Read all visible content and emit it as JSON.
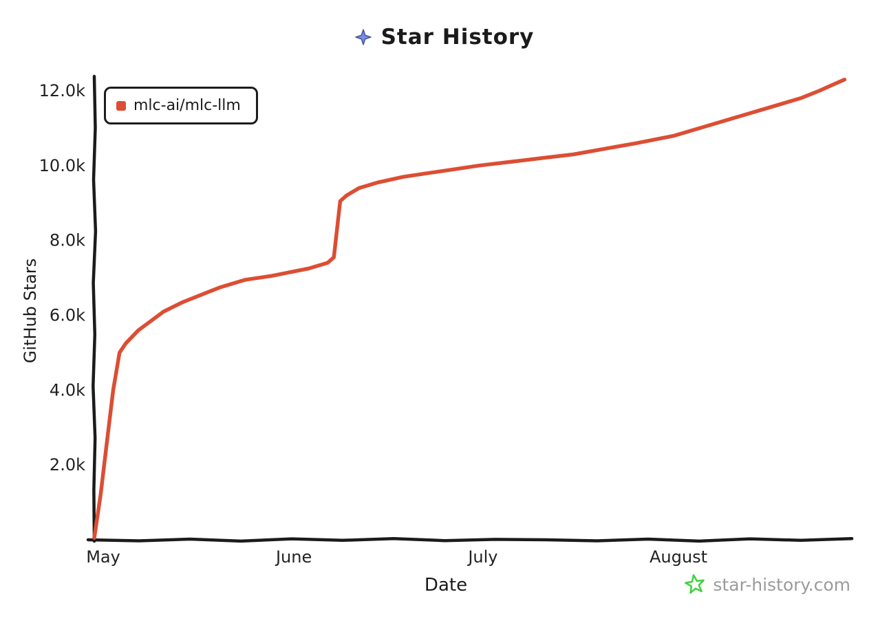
{
  "footer": {
    "text": "star-history.com",
    "star_color": "#3fd23f",
    "text_color": "#9b9b9b"
  },
  "title_icon_color": "#7b8ce0",
  "colors": {
    "series": "#DC4E34",
    "axis": "#1b1b1b",
    "tick_text": "#222222"
  },
  "chart_data": {
    "type": "line",
    "title": "Star History",
    "xlabel": "Date",
    "ylabel": "GitHub Stars",
    "ylim": [
      0,
      12600
    ],
    "grid": false,
    "legend_position": "top-left",
    "x_ticks": [
      "May",
      "June",
      "July",
      "August"
    ],
    "y_ticks": [
      "2.0k",
      "4.0k",
      "6.0k",
      "8.0k",
      "10.0k",
      "12.0k"
    ],
    "y_tick_values": [
      2000,
      4000,
      6000,
      8000,
      10000,
      12000
    ],
    "series": [
      {
        "name": "mlc-ai/mlc-llm",
        "color": "#DC4E34",
        "points": [
          {
            "date": "May 1",
            "stars": 50
          },
          {
            "date": "May 2",
            "stars": 1200
          },
          {
            "date": "May 3",
            "stars": 2600
          },
          {
            "date": "May 4",
            "stars": 4000
          },
          {
            "date": "May 5",
            "stars": 5000
          },
          {
            "date": "May 6",
            "stars": 5250
          },
          {
            "date": "May 8",
            "stars": 5600
          },
          {
            "date": "May 10",
            "stars": 5850
          },
          {
            "date": "May 12",
            "stars": 6100
          },
          {
            "date": "May 15",
            "stars": 6350
          },
          {
            "date": "May 18",
            "stars": 6550
          },
          {
            "date": "May 21",
            "stars": 6750
          },
          {
            "date": "May 25",
            "stars": 6950
          },
          {
            "date": "May 29",
            "stars": 7050
          },
          {
            "date": "June 1",
            "stars": 7150
          },
          {
            "date": "June 4",
            "stars": 7250
          },
          {
            "date": "June 6",
            "stars": 7350
          },
          {
            "date": "June 7",
            "stars": 7400
          },
          {
            "date": "June 8",
            "stars": 7550
          },
          {
            "date": "June 9",
            "stars": 9050
          },
          {
            "date": "June 10",
            "stars": 9200
          },
          {
            "date": "June 12",
            "stars": 9400
          },
          {
            "date": "June 15",
            "stars": 9550
          },
          {
            "date": "June 19",
            "stars": 9700
          },
          {
            "date": "June 23",
            "stars": 9800
          },
          {
            "date": "June 27",
            "stars": 9900
          },
          {
            "date": "July 1",
            "stars": 10000
          },
          {
            "date": "July 6",
            "stars": 10100
          },
          {
            "date": "July 11",
            "stars": 10200
          },
          {
            "date": "July 16",
            "stars": 10300
          },
          {
            "date": "July 21",
            "stars": 10450
          },
          {
            "date": "July 26",
            "stars": 10600
          },
          {
            "date": "August 1",
            "stars": 10800
          },
          {
            "date": "August 5",
            "stars": 11000
          },
          {
            "date": "August 9",
            "stars": 11200
          },
          {
            "date": "August 13",
            "stars": 11400
          },
          {
            "date": "August 17",
            "stars": 11600
          },
          {
            "date": "August 21",
            "stars": 11800
          },
          {
            "date": "August 24",
            "stars": 12000
          },
          {
            "date": "August 26",
            "stars": 12150
          },
          {
            "date": "August 28",
            "stars": 12300
          }
        ]
      }
    ]
  }
}
